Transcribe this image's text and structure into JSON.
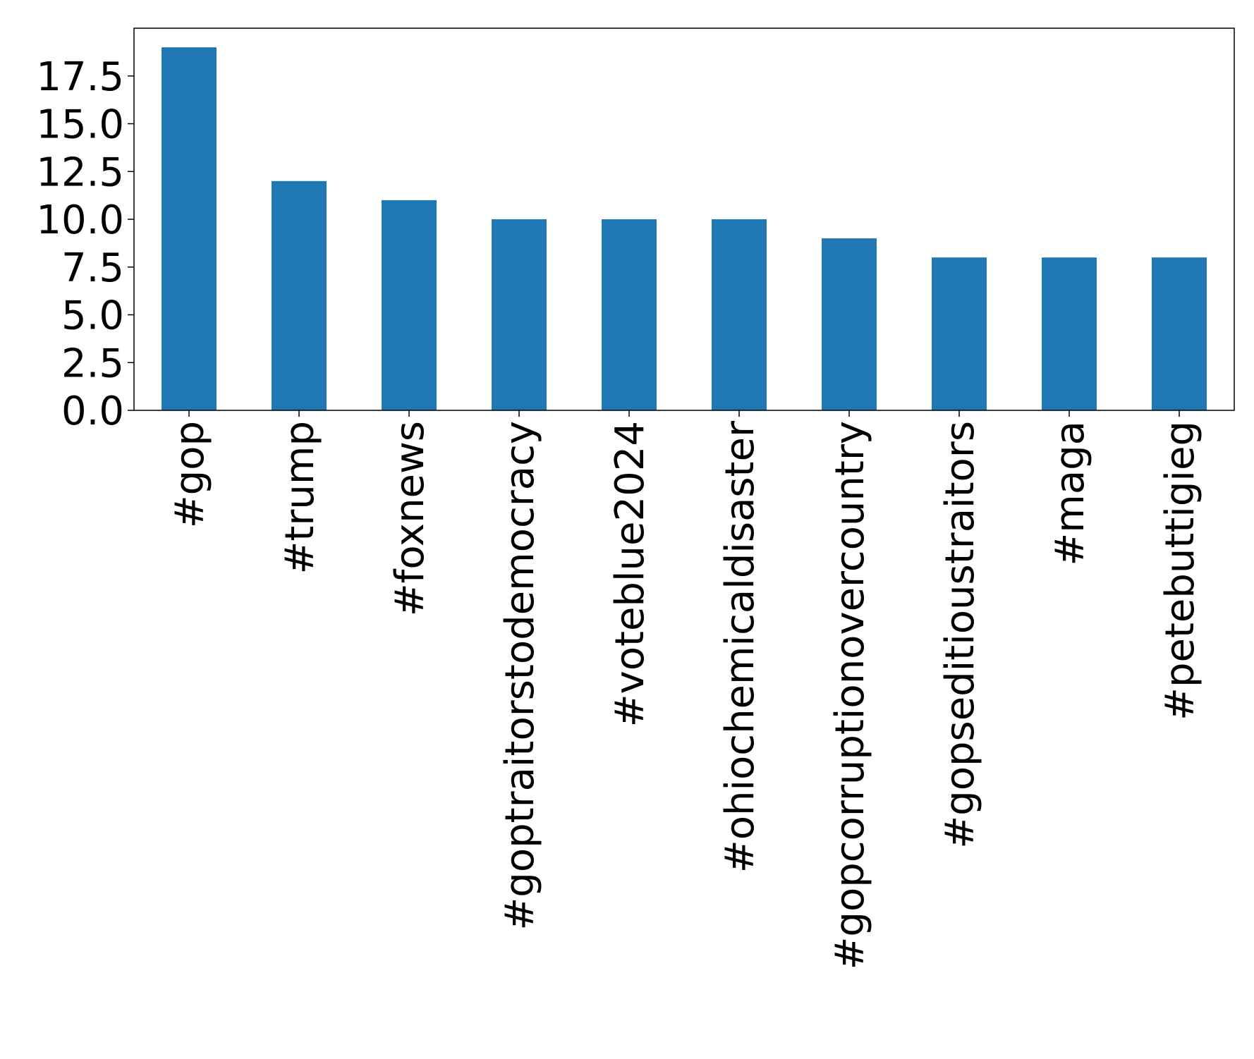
{
  "chart_data": {
    "type": "bar",
    "title": "",
    "xlabel": "",
    "ylabel": "",
    "categories": [
      "#gop",
      "#trump",
      "#foxnews",
      "#goptraitorstodemocracy",
      "#voteblue2024",
      "#ohiochemicaldisaster",
      "#gopcorruptionovercountry",
      "#gopseditioustraitors",
      "#maga",
      "#petebuttigieg"
    ],
    "values": [
      19,
      12,
      11,
      10,
      10,
      10,
      9,
      8,
      8,
      8
    ],
    "ylim": [
      0,
      20
    ],
    "yticks": [
      "0.0",
      "2.5",
      "5.0",
      "7.5",
      "10.0",
      "12.5",
      "15.0",
      "17.5"
    ],
    "grid": false,
    "legend": "none",
    "colors": {
      "bar": "#1f77b4",
      "axes": "#000000"
    }
  }
}
